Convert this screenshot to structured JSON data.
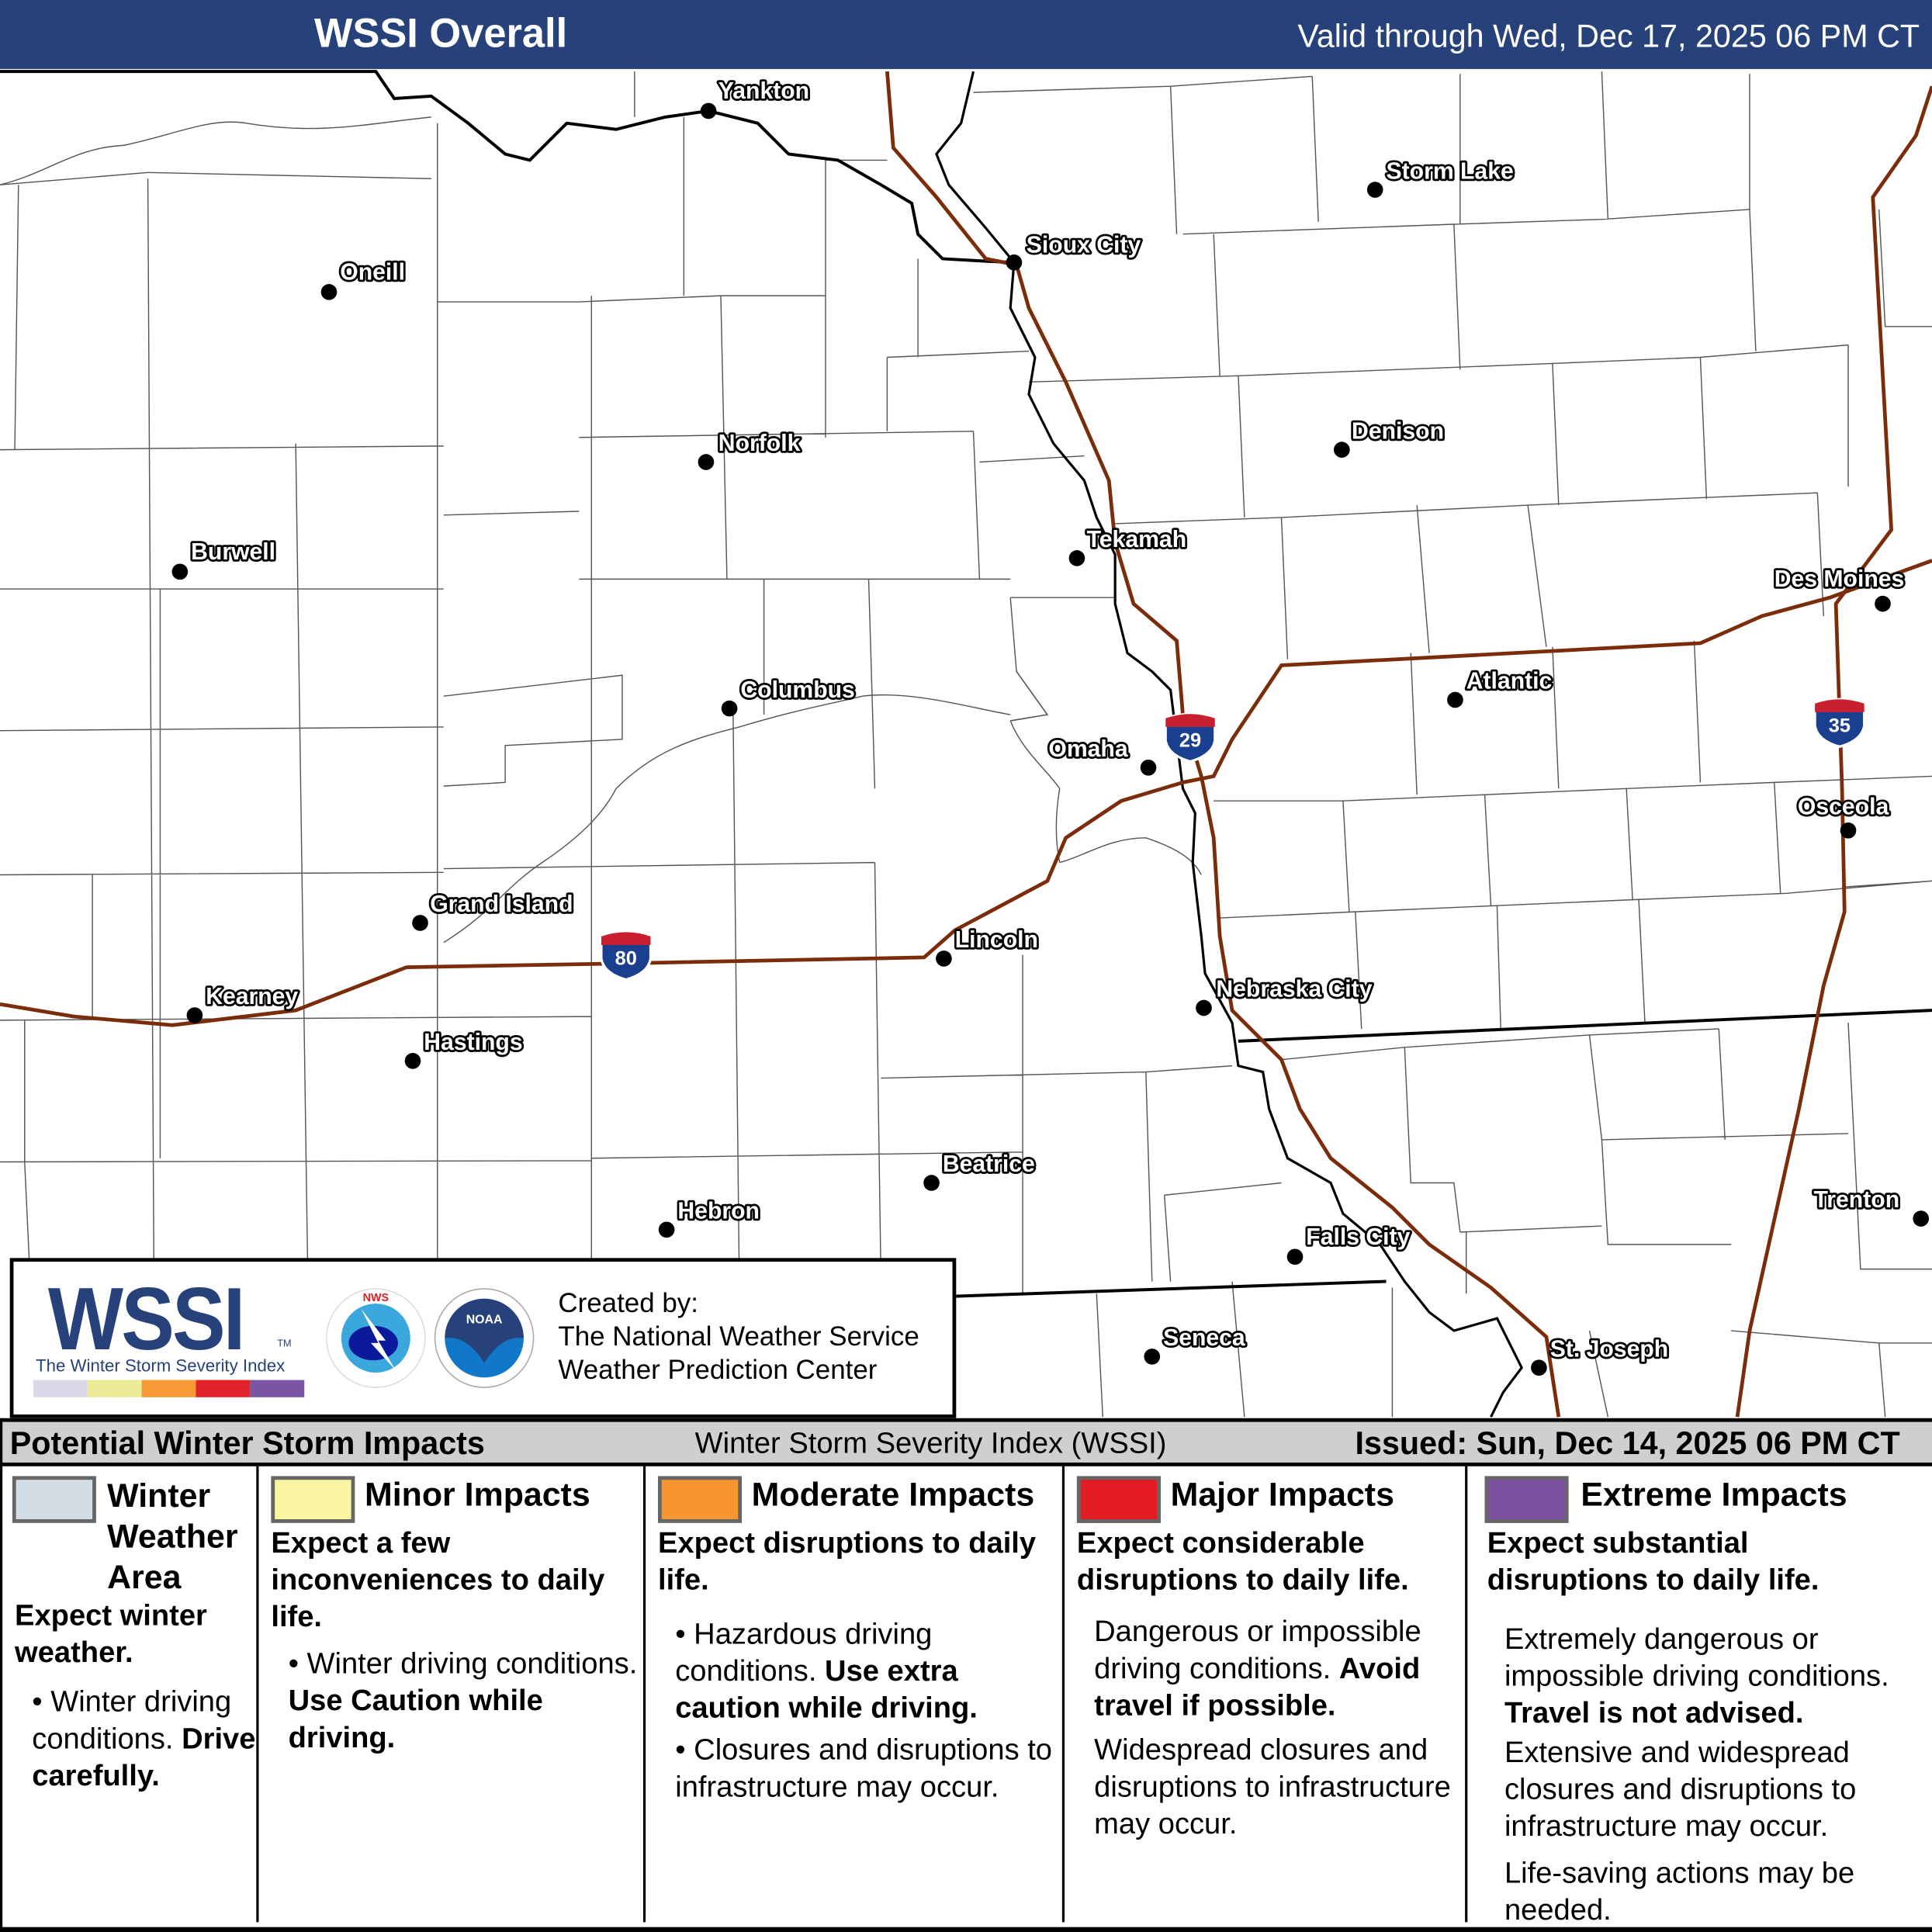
{
  "header": {
    "title": "WSSI Overall",
    "valid": "Valid through Wed, Dec 17, 2025 06 PM CT",
    "bg_color": "#27427a"
  },
  "map": {
    "road_color": "#7b2c0a",
    "cities": [
      {
        "name": "Yankton"
      },
      {
        "name": "Storm Lake"
      },
      {
        "name": "Sioux City"
      },
      {
        "name": "Oneill"
      },
      {
        "name": "Denison"
      },
      {
        "name": "Norfolk"
      },
      {
        "name": "Tekamah"
      },
      {
        "name": "Burwell"
      },
      {
        "name": "Des Moines"
      },
      {
        "name": "Atlantic"
      },
      {
        "name": "Columbus"
      },
      {
        "name": "Omaha"
      },
      {
        "name": "Osceola"
      },
      {
        "name": "Grand Island"
      },
      {
        "name": "Lincoln"
      },
      {
        "name": "Nebraska City"
      },
      {
        "name": "Kearney"
      },
      {
        "name": "Hastings"
      },
      {
        "name": "Beatrice"
      },
      {
        "name": "Trenton"
      },
      {
        "name": "Hebron"
      },
      {
        "name": "Falls City"
      },
      {
        "name": "Seneca"
      },
      {
        "name": "St. Joseph"
      }
    ],
    "interstates": [
      "80",
      "29",
      "35"
    ]
  },
  "logo": {
    "wssi": "WSSI",
    "tm": "TM",
    "subtitle": "The Winter Storm Severity Index",
    "scale_colors": [
      "#d9d9e8",
      "#ecec96",
      "#f59a35",
      "#e3222b",
      "#7b55a3"
    ],
    "nws_text": "NATIONAL WEATHER SERVICE",
    "noaa_text": "NOAA",
    "created": [
      "Created by:",
      "The National Weather Service",
      "Weather Prediction Center"
    ]
  },
  "legend_bar": {
    "left": "Potential Winter Storm Impacts",
    "middle": "Winter Storm Severity Index (WSSI)",
    "right": "Issued: Sun, Dec 14, 2025 06 PM CT"
  },
  "legend": [
    {
      "color": "#d3dde6",
      "title": [
        "Winter",
        "Weather",
        "Area"
      ],
      "sub": "Expect winter weather.",
      "text": "Winter driving conditions.",
      "bold": "Drive carefully."
    },
    {
      "color": "#faf5a0",
      "title": [
        "Minor Impacts"
      ],
      "sub": "Expect a few inconveniences to daily life.",
      "text": "Winter driving conditions.",
      "bold": "Use Caution while driving."
    },
    {
      "color": "#f7962f",
      "title": [
        "Moderate Impacts"
      ],
      "sub": "Expect disruptions to daily life.",
      "text": "Hazardous driving conditions.",
      "bold": "Use extra caution while driving.",
      "text2": "Closures and disruptions to infrastructure may occur."
    },
    {
      "color": "#e31c24",
      "title": [
        "Major Impacts"
      ],
      "sub": "Expect considerable disruptions to daily life.",
      "text": "Dangerous or impossible driving conditions.",
      "bold": "Avoid travel if possible.",
      "text2": "Widespread closures and disruptions to infrastructure may occur."
    },
    {
      "color": "#7a4f9e",
      "title": [
        "Extreme Impacts"
      ],
      "sub": "Expect substantial disruptions to daily life.",
      "text": "Extremely dangerous or impossible driving conditions.",
      "bold": "Travel is not advised.",
      "text2": "Extensive and widespread closures and disruptions to infrastructure may occur.",
      "text3": "Life-saving actions may be needed."
    }
  ]
}
